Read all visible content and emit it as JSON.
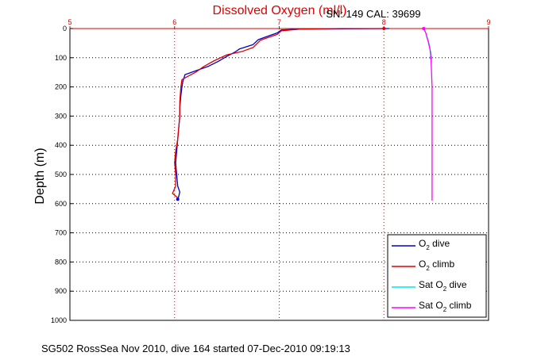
{
  "chart_data": {
    "type": "line",
    "title": "Dissolved Oxygen (ml/l)",
    "annotation": "SN: 149  CAL: 39699",
    "ylabel": "Depth (m)",
    "xlabel": "",
    "footer": "SG502 RossSea Nov 2010, dive 164 started 07-Dec-2010 09:19:13",
    "xlim": [
      5,
      9
    ],
    "ylim": [
      1000,
      0
    ],
    "x_ticks": [
      "5",
      "6",
      "7",
      "8",
      "9"
    ],
    "y_ticks": [
      "0",
      "100",
      "200",
      "300",
      "400",
      "500",
      "600",
      "700",
      "800",
      "900",
      "1000"
    ],
    "grid": true,
    "legend_position": "bottom-right",
    "colors": {
      "title": "#e00000",
      "top_axis": "#e00000",
      "o2_dive": "#0000cc",
      "o2_climb": "#e00000",
      "sat_dive": "#00e5e5",
      "sat_climb": "#ff00ff"
    },
    "series": [
      {
        "name": "O2 dive",
        "legend_main": "O",
        "legend_sub": "2",
        "legend_rest": " dive",
        "color": "#0000cc",
        "points": [
          [
            8.05,
            0
          ],
          [
            7.6,
            1
          ],
          [
            7.2,
            2
          ],
          [
            7.02,
            5
          ],
          [
            6.98,
            15
          ],
          [
            6.9,
            25
          ],
          [
            6.8,
            38
          ],
          [
            6.75,
            55
          ],
          [
            6.62,
            70
          ],
          [
            6.58,
            80
          ],
          [
            6.5,
            95
          ],
          [
            6.42,
            112
          ],
          [
            6.32,
            130
          ],
          [
            6.2,
            145
          ],
          [
            6.1,
            158
          ],
          [
            6.08,
            180
          ],
          [
            6.07,
            200
          ],
          [
            6.06,
            230
          ],
          [
            6.05,
            270
          ],
          [
            6.05,
            300
          ],
          [
            6.04,
            340
          ],
          [
            6.03,
            380
          ],
          [
            6.02,
            420
          ],
          [
            6.01,
            460
          ],
          [
            6.02,
            500
          ],
          [
            6.03,
            540
          ],
          [
            6.05,
            560
          ],
          [
            6.04,
            575
          ],
          [
            6.03,
            585
          ]
        ]
      },
      {
        "name": "O2 climb",
        "legend_main": "O",
        "legend_sub": "2",
        "legend_rest": " climb",
        "color": "#e00000",
        "points": [
          [
            6.03,
            580
          ],
          [
            5.98,
            565
          ],
          [
            6.01,
            540
          ],
          [
            6.01,
            500
          ],
          [
            6.0,
            460
          ],
          [
            6.01,
            420
          ],
          [
            6.03,
            380
          ],
          [
            6.04,
            340
          ],
          [
            6.05,
            300
          ],
          [
            6.05,
            250
          ],
          [
            6.06,
            200
          ],
          [
            6.07,
            175
          ],
          [
            6.12,
            165
          ],
          [
            6.2,
            150
          ],
          [
            6.28,
            130
          ],
          [
            6.38,
            110
          ],
          [
            6.5,
            90
          ],
          [
            6.65,
            78
          ],
          [
            6.75,
            65
          ],
          [
            6.82,
            40
          ],
          [
            6.9,
            30
          ],
          [
            6.98,
            20
          ],
          [
            7.02,
            8
          ],
          [
            7.2,
            2
          ],
          [
            7.6,
            0
          ],
          [
            8.0,
            0
          ]
        ]
      },
      {
        "name": "Sat O2 dive",
        "legend_main": "Sat O",
        "legend_sub": "2",
        "legend_rest": " dive",
        "color": "#00e5e5",
        "points": [
          [
            8.38,
            0
          ],
          [
            8.4,
            15
          ],
          [
            8.41,
            30
          ],
          [
            8.43,
            50
          ],
          [
            8.44,
            70
          ],
          [
            8.45,
            85
          ],
          [
            8.45,
            100
          ]
        ]
      },
      {
        "name": "Sat O2 climb",
        "legend_main": "Sat O",
        "legend_sub": "2",
        "legend_rest": " climb",
        "color": "#ff00ff",
        "points": [
          [
            8.46,
            590
          ],
          [
            8.46,
            500
          ],
          [
            8.46,
            420
          ],
          [
            8.46,
            300
          ],
          [
            8.46,
            200
          ],
          [
            8.45,
            100
          ],
          [
            8.44,
            70
          ],
          [
            8.42,
            40
          ],
          [
            8.4,
            15
          ],
          [
            8.38,
            0
          ]
        ]
      }
    ]
  }
}
